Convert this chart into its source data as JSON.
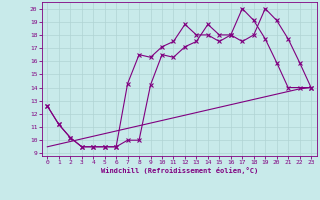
{
  "xlabel": "Windchill (Refroidissement éolien,°C)",
  "bg_color": "#c8eaea",
  "line_color": "#800080",
  "xlim": [
    -0.5,
    23.5
  ],
  "ylim": [
    8.8,
    20.5
  ],
  "xticks": [
    0,
    1,
    2,
    3,
    4,
    5,
    6,
    7,
    8,
    9,
    10,
    11,
    12,
    13,
    14,
    15,
    16,
    17,
    18,
    19,
    20,
    21,
    22,
    23
  ],
  "yticks": [
    9,
    10,
    11,
    12,
    13,
    14,
    15,
    16,
    17,
    18,
    19,
    20
  ],
  "line1_x": [
    0,
    1,
    2,
    3,
    4,
    5,
    6,
    7,
    8,
    9,
    10,
    11,
    12,
    13,
    14,
    15,
    16,
    17,
    18,
    19,
    20,
    21,
    22,
    23
  ],
  "line1_y": [
    12.6,
    11.2,
    10.2,
    9.5,
    9.5,
    9.5,
    9.5,
    10.0,
    10.0,
    14.2,
    16.5,
    16.3,
    17.1,
    17.5,
    18.8,
    18.0,
    18.0,
    17.5,
    18.0,
    20.0,
    19.1,
    17.7,
    15.9,
    14.0
  ],
  "line2_x": [
    0,
    1,
    2,
    3,
    4,
    5,
    6,
    7,
    8,
    9,
    10,
    11,
    12,
    13,
    14,
    15,
    16,
    17,
    18,
    19,
    20,
    21,
    22,
    23
  ],
  "line2_y": [
    12.6,
    11.2,
    10.2,
    9.5,
    9.5,
    9.5,
    9.5,
    14.3,
    16.5,
    16.3,
    17.1,
    17.5,
    18.8,
    18.0,
    18.0,
    17.5,
    18.0,
    20.0,
    19.1,
    17.7,
    15.9,
    14.0,
    14.0,
    14.0
  ],
  "line3_x": [
    0,
    1,
    2,
    3,
    4,
    5,
    6,
    7,
    8,
    9,
    10,
    11,
    12,
    13,
    14,
    15,
    16,
    17,
    18,
    19,
    20,
    21,
    22,
    23
  ],
  "line3_y": [
    9.5,
    9.7,
    9.9,
    10.1,
    10.3,
    10.5,
    10.7,
    10.9,
    11.1,
    11.3,
    11.5,
    11.7,
    11.9,
    12.1,
    12.3,
    12.5,
    12.7,
    12.9,
    13.1,
    13.3,
    13.5,
    13.7,
    13.9,
    14.0
  ]
}
